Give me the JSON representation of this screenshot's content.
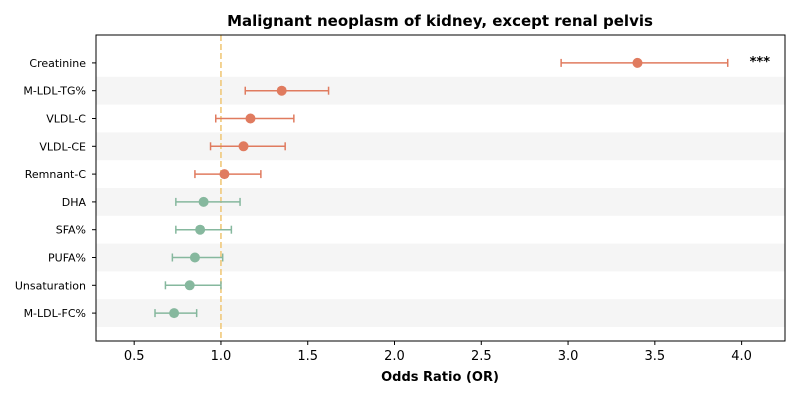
{
  "chart_data": {
    "type": "scatter",
    "title": "Malignant neoplasm of kidney, except renal pelvis",
    "xlabel": "Odds Ratio (OR)",
    "ylabel": "",
    "xlim": [
      0.28,
      4.25
    ],
    "xticks": [
      "0.5",
      "1.0",
      "1.5",
      "2.0",
      "2.5",
      "3.0",
      "3.5",
      "4.0"
    ],
    "reference_line": 1.0,
    "colors": {
      "risk": "#e07b5f",
      "protective": "#86b89e",
      "reference": "#f0c87a",
      "band": "#f5f5f5"
    },
    "categories": [
      "Creatinine",
      "M-LDL-TG%",
      "VLDL-C",
      "VLDL-CE",
      "Remnant-C",
      "DHA",
      "SFA%",
      "PUFA%",
      "Unsaturation",
      "M-LDL-FC%"
    ],
    "or": [
      3.4,
      1.35,
      1.17,
      1.13,
      1.02,
      0.9,
      0.88,
      0.85,
      0.82,
      0.73
    ],
    "lower": [
      2.96,
      1.14,
      0.97,
      0.94,
      0.85,
      0.74,
      0.74,
      0.72,
      0.68,
      0.62
    ],
    "upper": [
      3.92,
      1.62,
      1.42,
      1.37,
      1.23,
      1.11,
      1.06,
      1.01,
      1.0,
      0.86
    ],
    "significance": [
      "***",
      "",
      "",
      "",
      "",
      "",
      "",
      "",
      "",
      ""
    ]
  }
}
